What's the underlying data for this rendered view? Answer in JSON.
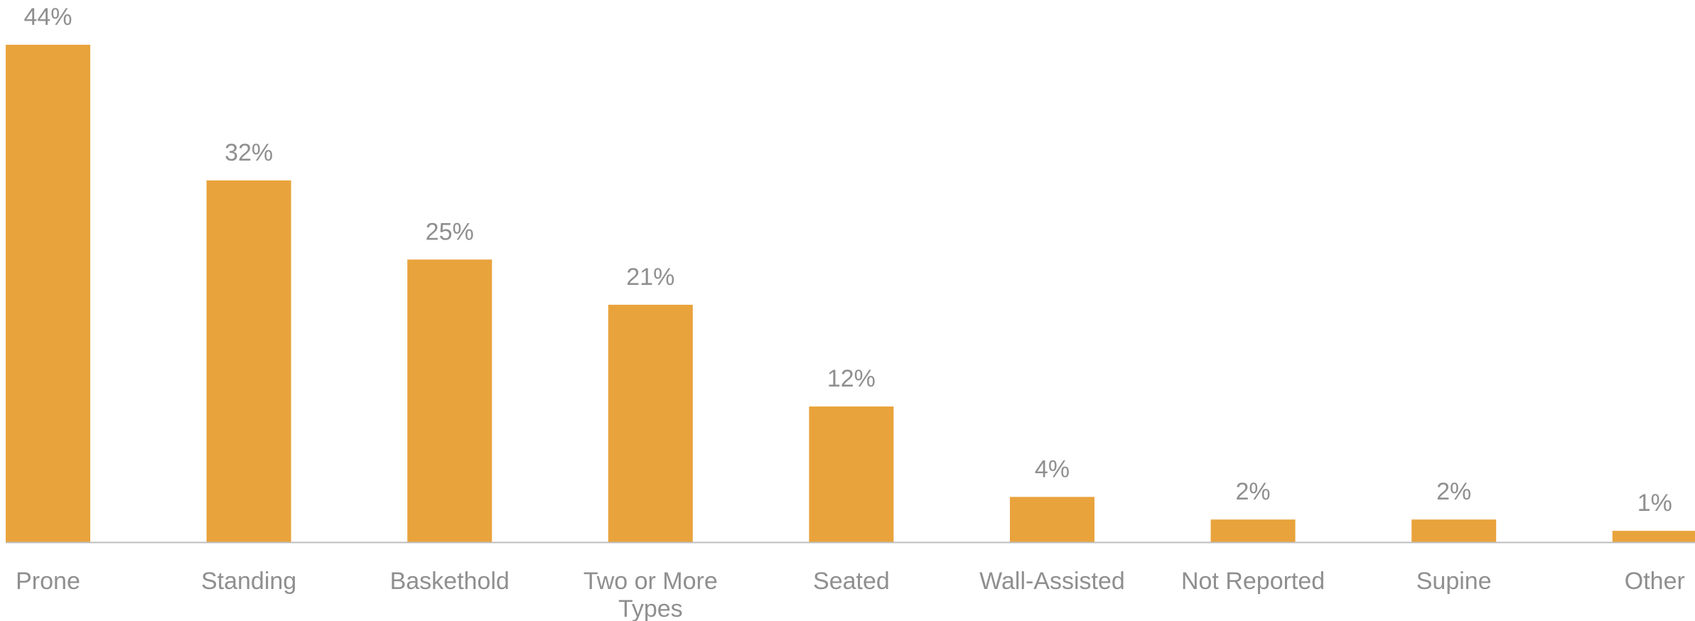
{
  "chart_data": {
    "type": "bar",
    "categories": [
      [
        "Prone"
      ],
      [
        "Standing"
      ],
      [
        "Baskethold"
      ],
      [
        "Two or More",
        "Types"
      ],
      [
        "Seated"
      ],
      [
        "Wall-Assisted"
      ],
      [
        "Not Reported"
      ],
      [
        "Supine"
      ],
      [
        "Other"
      ]
    ],
    "values": [
      44,
      32,
      25,
      21,
      12,
      4,
      2,
      2,
      1
    ],
    "data_labels": [
      "44%",
      "32%",
      "25%",
      "21%",
      "12%",
      "4%",
      "2%",
      "2%",
      "1%"
    ],
    "ylim": [
      0,
      44
    ],
    "grid": false,
    "legend": "none",
    "colors": {
      "bar": "#E9A33C",
      "axis": "#BDBDBD",
      "text": "#8F8F8F"
    }
  }
}
